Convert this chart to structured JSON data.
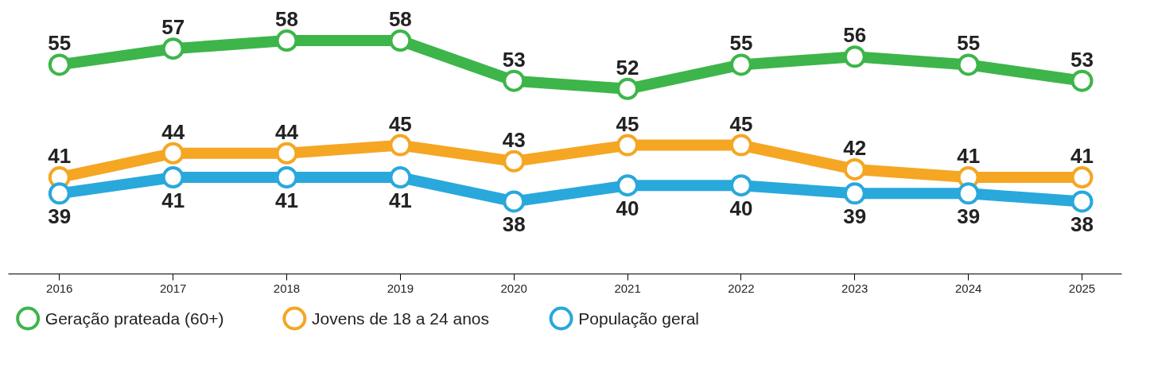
{
  "chart_data": {
    "type": "line",
    "categories": [
      "2016",
      "2017",
      "2018",
      "2019",
      "2020",
      "2021",
      "2022",
      "2023",
      "2024",
      "2025"
    ],
    "series": [
      {
        "name": "Geração prateada (60+)",
        "color": "#3db54a",
        "values": [
          55,
          57,
          58,
          58,
          53,
          52,
          55,
          56,
          55,
          53
        ]
      },
      {
        "name": "Jovens de 18 a 24 anos",
        "color": "#f5a623",
        "values": [
          41,
          44,
          44,
          45,
          43,
          45,
          45,
          42,
          41,
          41
        ]
      },
      {
        "name": "População geral",
        "color": "#29a8dc",
        "values": [
          39,
          41,
          41,
          41,
          38,
          40,
          40,
          39,
          39,
          38
        ]
      }
    ],
    "data_labels": true,
    "marker": "circle",
    "legend": "bottom left"
  }
}
